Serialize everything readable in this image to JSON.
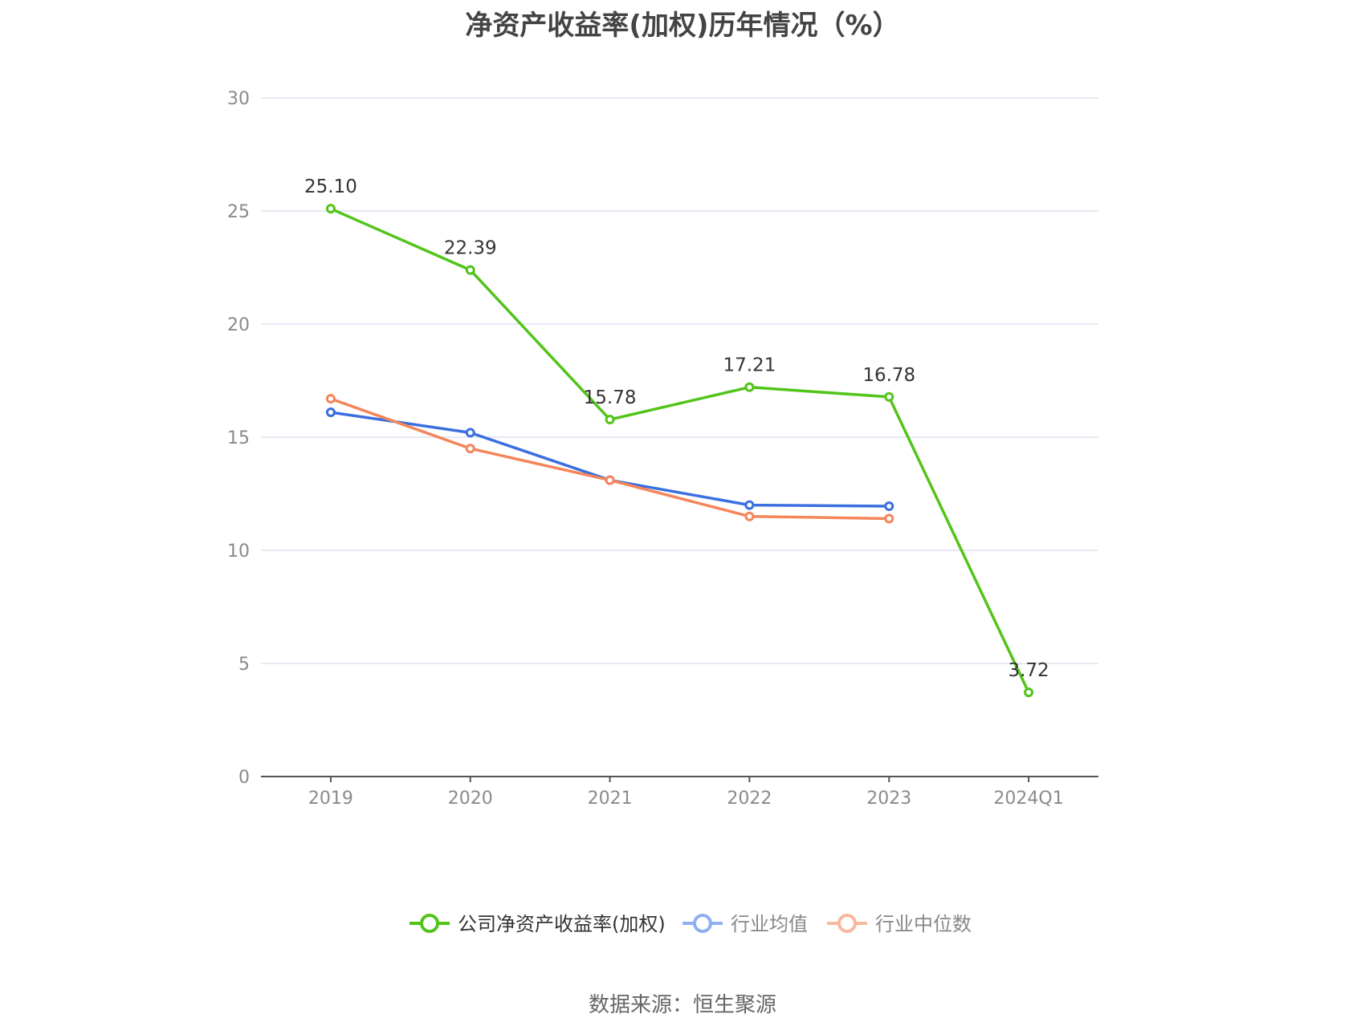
{
  "chart_data": {
    "type": "line",
    "title": "净资产收益率(加权)历年情况（%）",
    "categories": [
      "2019",
      "2020",
      "2021",
      "2022",
      "2023",
      "2024Q1"
    ],
    "ylim": [
      0,
      30
    ],
    "yticks": [
      0,
      5,
      10,
      15,
      20,
      25,
      30
    ],
    "grid": true,
    "legend_position": "bottom",
    "series": [
      {
        "name": "公司净资产收益率(加权)",
        "color": "#52c41a",
        "values": [
          25.1,
          22.39,
          15.78,
          17.21,
          16.78,
          3.72
        ],
        "labels": [
          "25.10",
          "22.39",
          "15.78",
          "17.21",
          "16.78",
          "3.72"
        ]
      },
      {
        "name": "行业均值",
        "color": "#3a6fe0",
        "legend_color": "#8fb0f0",
        "values": [
          16.1,
          15.2,
          13.1,
          12.0,
          11.95,
          null
        ]
      },
      {
        "name": "行业中位数",
        "color": "#f5855a",
        "legend_color": "#f8b89c",
        "values": [
          16.7,
          14.5,
          13.1,
          11.5,
          11.4,
          null
        ]
      }
    ]
  },
  "source": "数据来源：恒生聚源"
}
